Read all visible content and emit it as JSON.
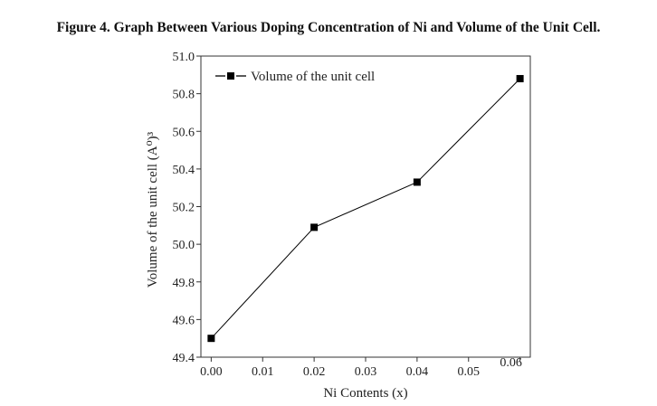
{
  "figure_title": "Figure 4. Graph Between Various Doping Concentration of Ni and Volume of the Unit Cell.",
  "chart_data": {
    "type": "line",
    "xlabel": "Ni Contents (x)",
    "ylabel": "Volume of the unit cell (A⁰)³",
    "xlim": [
      -0.002,
      0.062
    ],
    "ylim": [
      49.4,
      51.0
    ],
    "x_ticks": [
      "0.00",
      "0.01",
      "0.02",
      "0.03",
      "0.04",
      "0.05",
      "0.06"
    ],
    "y_ticks": [
      "49.4",
      "49.6",
      "49.8",
      "50.0",
      "50.2",
      "50.4",
      "50.6",
      "50.8",
      "51.0"
    ],
    "grid": false,
    "legend_position": "top-left",
    "series": [
      {
        "name": "Volume of the unit cell",
        "marker": "square",
        "color": "#000000",
        "x": [
          0.0,
          0.02,
          0.04,
          0.06
        ],
        "y": [
          49.5,
          50.09,
          50.33,
          50.88
        ]
      }
    ]
  }
}
